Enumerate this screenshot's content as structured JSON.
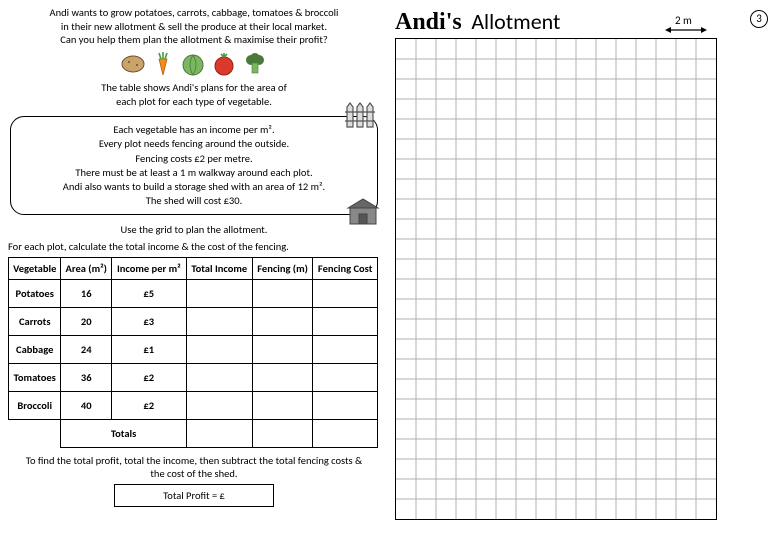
{
  "intro": {
    "line1": "Andi wants to grow potatoes, carrots, cabbage, tomatoes & broccoli",
    "line2": "in their new allotment & sell the produce at their local market.",
    "line3": "Can you help them plan the allotment & maximise their profit?"
  },
  "subintro": {
    "line1": "The table shows Andi's plans for the area of",
    "line2": "each plot for each type of vegetable."
  },
  "infobox": {
    "l1": "Each vegetable has an income per m².",
    "l2": "Every plot needs fencing around the outside.",
    "l3": "Fencing costs £2 per metre.",
    "l4": "There must be at least a 1 m walkway around each plot.",
    "l5": "Andi also wants to build a storage shed with an area of 12 m².",
    "l6": "The shed will cost £30."
  },
  "useline": "Use the grid to plan the allotment.",
  "calcline": "For each plot, calculate the total income & the cost of the fencing.",
  "table": {
    "headers": [
      "Vegetable",
      "Area (m²)",
      "Income per m²",
      "Total Income",
      "Fencing (m)",
      "Fencing Cost"
    ],
    "rows": [
      {
        "veg": "Potatoes",
        "area": "16",
        "income": "£5",
        "total": "",
        "fence_m": "",
        "fence_cost": ""
      },
      {
        "veg": "Carrots",
        "area": "20",
        "income": "£3",
        "total": "",
        "fence_m": "",
        "fence_cost": ""
      },
      {
        "veg": "Cabbage",
        "area": "24",
        "income": "£1",
        "total": "",
        "fence_m": "",
        "fence_cost": ""
      },
      {
        "veg": "Tomatoes",
        "area": "36",
        "income": "£2",
        "total": "",
        "fence_m": "",
        "fence_cost": ""
      },
      {
        "veg": "Broccoli",
        "area": "40",
        "income": "£2",
        "total": "",
        "fence_m": "",
        "fence_cost": ""
      }
    ],
    "totals_label": "Totals"
  },
  "profit_note": "To find the total profit, total the income, then subtract the total fencing costs & the cost of the shed.",
  "profit_box": "Total Profit = £",
  "right": {
    "title1": "Andi's",
    "title2": "Allotment",
    "scale": "2 m",
    "page_no": "3"
  },
  "grid": {
    "cols": 16,
    "rows": 24,
    "cell": 20,
    "line_color": "#b0b0b0",
    "border_color": "#000000",
    "bg": "#ffffff"
  },
  "colors": {
    "text": "#000000",
    "bg": "#ffffff"
  },
  "veg_icons": {
    "potato": "#c9a36a",
    "carrot_body": "#f28c1e",
    "carrot_top": "#4a9b3a",
    "cabbage": "#7bb661",
    "tomato": "#d93a2b",
    "tomato_top": "#4a9b3a",
    "broccoli_top": "#4a7a3a",
    "broccoli_stem": "#7bb661"
  }
}
